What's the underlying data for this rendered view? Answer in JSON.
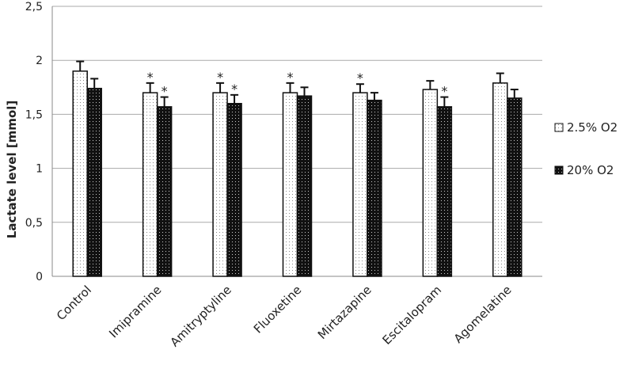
{
  "chart_data": {
    "type": "bar",
    "title": "",
    "xlabel": "",
    "ylabel": "Lactate level [mmol]",
    "ylim": [
      0,
      2.5
    ],
    "yticks": [
      "0",
      "0,5",
      "1",
      "1,5",
      "2",
      "2,5"
    ],
    "grid": true,
    "legend_position": "right",
    "categories": [
      "Control",
      "Imipramine",
      "Amitryptyline",
      "Fluoxetine",
      "Mirtazapine",
      "Escitalopram",
      "Agomelatine"
    ],
    "series": [
      {
        "name": "2.5% O2",
        "color": "#ffffff",
        "values": [
          1.9,
          1.7,
          1.7,
          1.7,
          1.7,
          1.73,
          1.79
        ],
        "errors": [
          0.09,
          0.09,
          0.09,
          0.09,
          0.08,
          0.08,
          0.09
        ],
        "significant": [
          false,
          true,
          true,
          true,
          true,
          false,
          false
        ]
      },
      {
        "name": "20% O2",
        "color": "#111111",
        "values": [
          1.74,
          1.57,
          1.6,
          1.67,
          1.63,
          1.57,
          1.65
        ],
        "errors": [
          0.09,
          0.09,
          0.08,
          0.08,
          0.07,
          0.09,
          0.08
        ],
        "significant": [
          false,
          true,
          true,
          false,
          false,
          true,
          false
        ]
      }
    ],
    "significance_marker": "*"
  }
}
